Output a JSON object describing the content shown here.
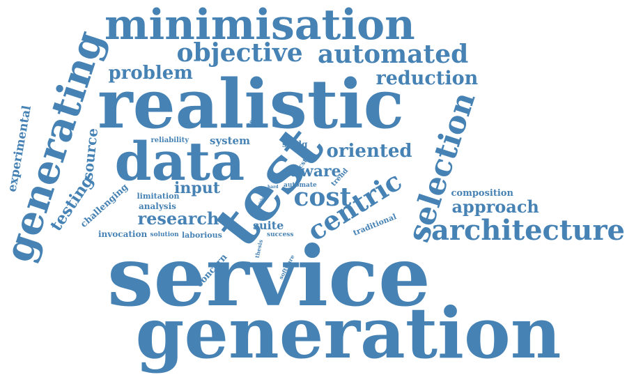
{
  "colors": {
    "word_color": "#4682b4",
    "background": "#ffffff"
  },
  "words": [
    {
      "text": "service",
      "weight": 100,
      "orientation": "horizontal"
    },
    {
      "text": "generation",
      "weight": 95,
      "orientation": "horizontal"
    },
    {
      "text": "realistic",
      "weight": 88,
      "orientation": "horizontal"
    },
    {
      "text": "test",
      "weight": 82,
      "orientation": "rotated"
    },
    {
      "text": "data",
      "weight": 80,
      "orientation": "horizontal"
    },
    {
      "text": "minimisation",
      "weight": 60,
      "orientation": "horizontal"
    },
    {
      "text": "generating",
      "weight": 58,
      "orientation": "rotated"
    },
    {
      "text": "selection",
      "weight": 52,
      "orientation": "rotated"
    },
    {
      "text": "architecture",
      "weight": 45,
      "orientation": "horizontal"
    },
    {
      "text": "centric",
      "weight": 44,
      "orientation": "rotated"
    },
    {
      "text": "objective",
      "weight": 42,
      "orientation": "horizontal"
    },
    {
      "text": "automated",
      "weight": 42,
      "orientation": "horizontal"
    },
    {
      "text": "cost",
      "weight": 40,
      "orientation": "horizontal"
    },
    {
      "text": "reduction",
      "weight": 32,
      "orientation": "horizontal"
    },
    {
      "text": "problem",
      "weight": 30,
      "orientation": "horizontal"
    },
    {
      "text": "oriented",
      "weight": 30,
      "orientation": "horizontal"
    },
    {
      "text": "research",
      "weight": 30,
      "orientation": "horizontal"
    },
    {
      "text": "approach",
      "weight": 28,
      "orientation": "horizontal"
    },
    {
      "text": "input",
      "weight": 26,
      "orientation": "horizontal"
    },
    {
      "text": "aware",
      "weight": 26,
      "orientation": "horizontal"
    },
    {
      "text": "testing",
      "weight": 26,
      "orientation": "rotated"
    },
    {
      "text": "source",
      "weight": 22,
      "orientation": "rotated"
    },
    {
      "text": "experimental",
      "weight": 20,
      "orientation": "rotated"
    },
    {
      "text": "suite",
      "weight": 18,
      "orientation": "horizontal"
    },
    {
      "text": "system",
      "weight": 17,
      "orientation": "horizontal"
    },
    {
      "text": "challenging",
      "weight": 15,
      "orientation": "rotated"
    },
    {
      "text": "concern",
      "weight": 15,
      "orientation": "rotated"
    },
    {
      "text": "composition",
      "weight": 15,
      "orientation": "horizontal"
    },
    {
      "text": "analysis",
      "weight": 14,
      "orientation": "horizontal"
    },
    {
      "text": "invocation",
      "weight": 14,
      "orientation": "horizontal"
    },
    {
      "text": "laborious",
      "weight": 13,
      "orientation": "horizontal"
    },
    {
      "text": "sctdg",
      "weight": 13,
      "orientation": "horizontal"
    },
    {
      "text": "traditional",
      "weight": 13,
      "orientation": "rotated"
    },
    {
      "text": "limitation",
      "weight": 12,
      "orientation": "horizontal"
    },
    {
      "text": "trend",
      "weight": 12,
      "orientation": "rotated"
    },
    {
      "text": "reliability",
      "weight": 10,
      "orientation": "horizontal"
    },
    {
      "text": "scst",
      "weight": 10,
      "orientation": "rotated"
    },
    {
      "text": "software",
      "weight": 10,
      "orientation": "rotated"
    },
    {
      "text": "thesis",
      "weight": 10,
      "orientation": "rotated"
    },
    {
      "text": "success",
      "weight": 10,
      "orientation": "horizontal"
    },
    {
      "text": "solution",
      "weight": 10,
      "orientation": "horizontal"
    },
    {
      "text": "automate",
      "weight": 9,
      "orientation": "horizontal"
    },
    {
      "text": "tester",
      "weight": 9,
      "orientation": "rotated"
    },
    {
      "text": "hard",
      "weight": 7,
      "orientation": "horizontal"
    },
    {
      "text": "role",
      "weight": 6,
      "orientation": "rotated"
    }
  ]
}
